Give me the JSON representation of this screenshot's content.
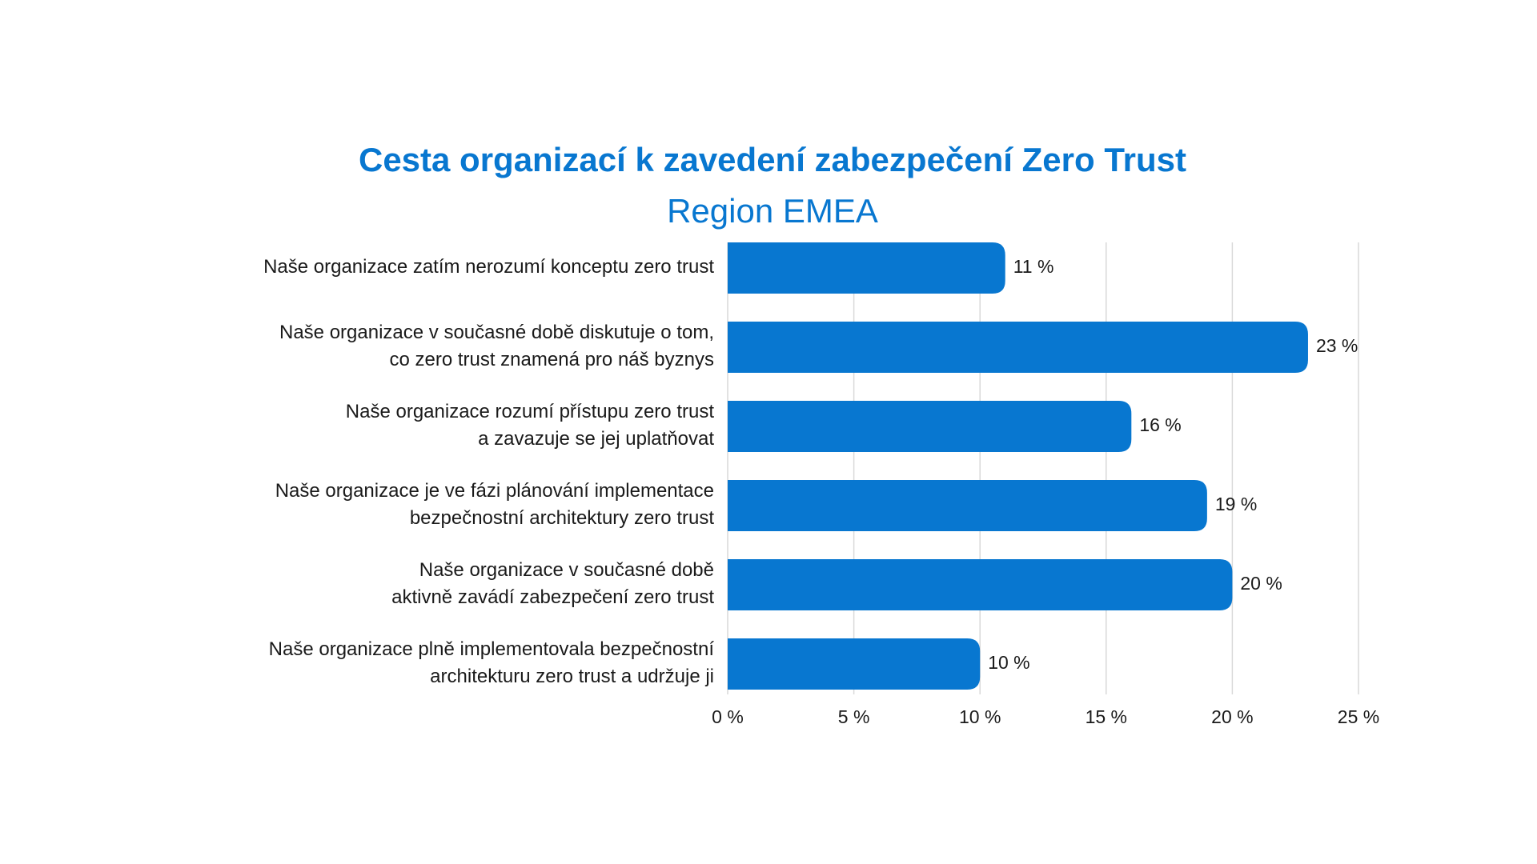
{
  "chart_data": {
    "type": "bar",
    "orientation": "horizontal",
    "title": "Cesta organizací k zavedení zabezpečení Zero Trust",
    "subtitle": "Region EMEA",
    "categories": [
      [
        "Naše organizace zatím nerozumí konceptu zero trust"
      ],
      [
        "Naše organizace v současné době diskutuje o tom,",
        "co zero trust znamená pro náš byznys"
      ],
      [
        "Naše organizace rozumí přístupu zero trust",
        "a zavazuje se jej uplatňovat"
      ],
      [
        "Naše organizace je ve fázi plánování implementace",
        "bezpečnostní architektury zero trust"
      ],
      [
        "Naše organizace v současné době",
        "aktivně zavádí zabezpečení zero trust"
      ],
      [
        "Naše organizace plně implementovala bezpečnostní",
        "architekturu zero trust a udržuje ji"
      ]
    ],
    "values": [
      11,
      23,
      16,
      19,
      20,
      10
    ],
    "value_labels": [
      "11 %",
      "23 %",
      "16 %",
      "19 %",
      "20 %",
      "10 %"
    ],
    "xlim": [
      0,
      25
    ],
    "x_ticks": [
      0,
      5,
      10,
      15,
      20,
      25
    ],
    "x_tick_labels": [
      "0 %",
      "5 %",
      "10 %",
      "15 %",
      "20 %",
      "25 %"
    ],
    "grid": true,
    "legend": "none",
    "bar_color": "#0877d0",
    "grid_color": "#d9d9d9"
  }
}
